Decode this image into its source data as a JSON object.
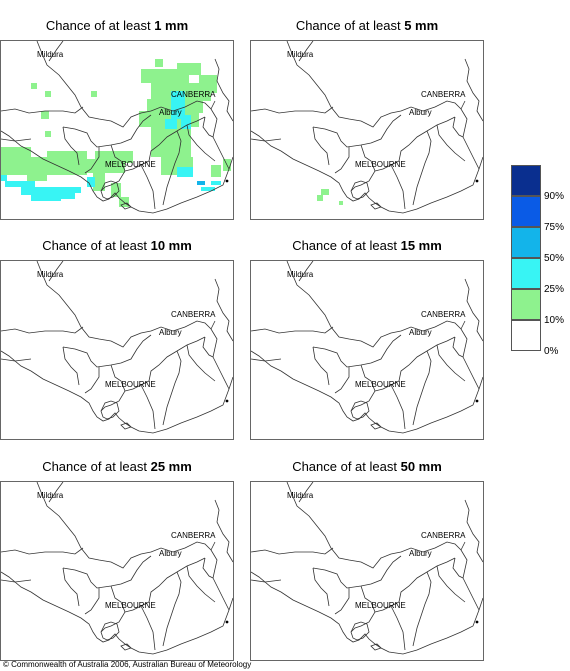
{
  "panels": [
    {
      "prefix": "Chance of at least ",
      "amount": "1 mm",
      "level": "1mm"
    },
    {
      "prefix": "Chance of at least ",
      "amount": "5 mm",
      "level": "5mm"
    },
    {
      "prefix": "Chance of at least ",
      "amount": "10 mm",
      "level": "10mm"
    },
    {
      "prefix": "Chance of at least ",
      "amount": "15 mm",
      "level": "15mm"
    },
    {
      "prefix": "Chance of at least ",
      "amount": "25 mm",
      "level": "25mm"
    },
    {
      "prefix": "Chance of at least ",
      "amount": "50 mm",
      "level": "50mm"
    }
  ],
  "places": {
    "mildura": "Mildura",
    "canberra": "CANBERRA",
    "albury": "Albury",
    "melbourne": "MELBOURNE"
  },
  "legend": {
    "labels": [
      "90%",
      "75%",
      "50%",
      "25%",
      "10%",
      "0%"
    ],
    "colors": [
      "#0a2f8f",
      "#0a5be6",
      "#13b4ea",
      "#38f4f4",
      "#8ef28e",
      "#ffffff"
    ]
  },
  "copyright": "© Commonwealth of Australia 2006, Australian Bureau of Meteorology"
}
